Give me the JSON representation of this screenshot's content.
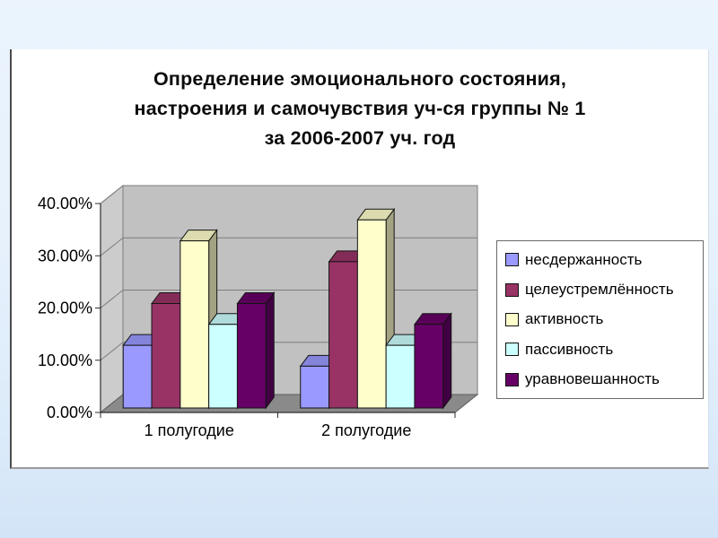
{
  "slide": {
    "title_lines": [
      "Определение эмоционального состояния,",
      "настроения и самочувствия уч-ся группы № 1",
      "за 2006-2007 уч. год"
    ]
  },
  "chart_data": {
    "type": "bar",
    "projection": "3d-clustered-column",
    "title": "Определение эмоционального состояния, настроения и самочувствия уч-ся группы № 1 за 2006-2007 уч. год",
    "categories": [
      "1 полугодие",
      "2 полугодие"
    ],
    "series": [
      {
        "name": "несдержанность",
        "color": "#9999FF",
        "values": [
          12,
          8
        ]
      },
      {
        "name": "целеустремлённость",
        "color": "#993366",
        "values": [
          20,
          28
        ]
      },
      {
        "name": "активность",
        "color": "#FFFFCC",
        "values": [
          32,
          36
        ]
      },
      {
        "name": "пассивность",
        "color": "#CCFFFF",
        "values": [
          16,
          12
        ]
      },
      {
        "name": "уравновешанность",
        "color": "#660066",
        "values": [
          20,
          16
        ]
      }
    ],
    "value_unit": "%",
    "ylim": [
      0,
      40
    ],
    "y_tick_step": 10,
    "y_ticks": [
      "0.00%",
      "10.00%",
      "20.00%",
      "30.00%",
      "40.00%"
    ],
    "grid": true,
    "legend_position": "right",
    "wall_color": "#c1c1c1",
    "side_wall_color": "#cccccc",
    "floor_color": "#8a8a8a",
    "gridline_color": "#7d7d7d",
    "axis_color": "#2e2e2e"
  }
}
